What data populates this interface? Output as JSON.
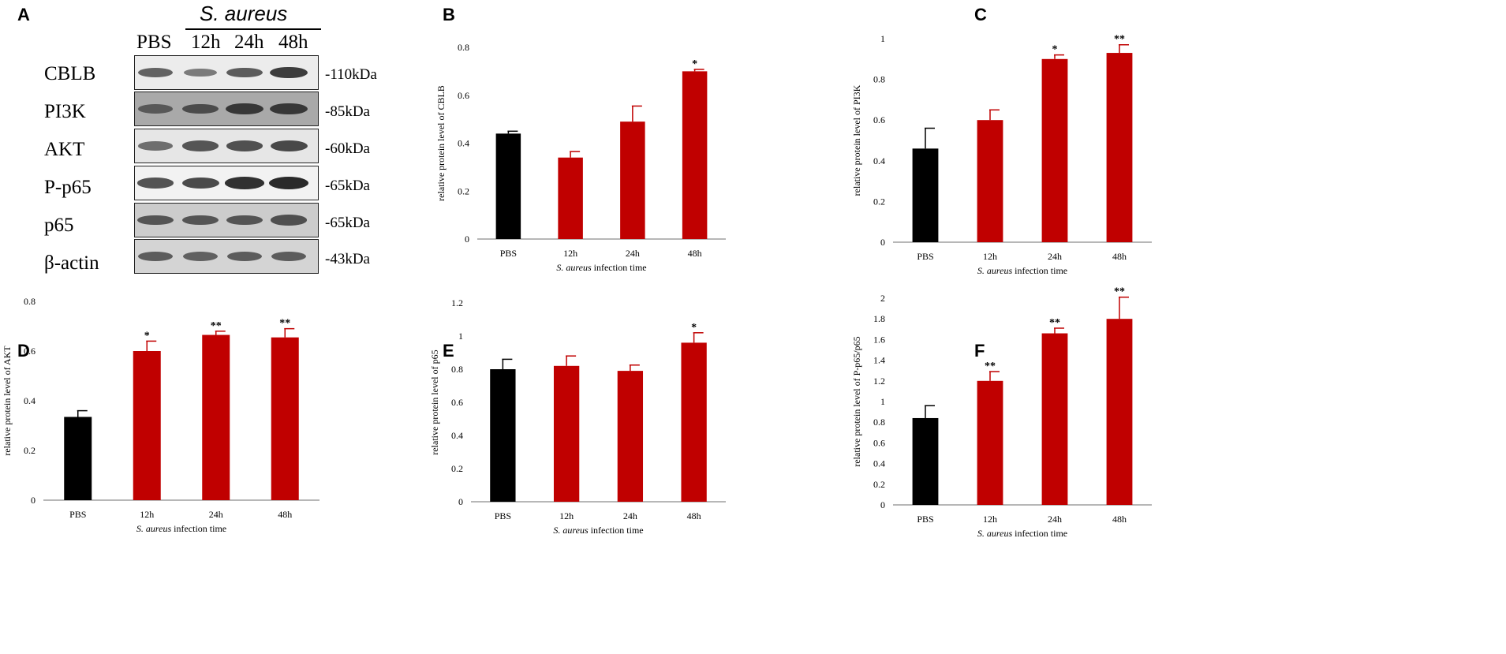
{
  "panel_labels": {
    "a": "A",
    "b": "B",
    "c": "C",
    "d": "D",
    "e": "E",
    "f": "F"
  },
  "blot": {
    "treatment_header": "S. aureus",
    "lanes": [
      "PBS",
      "12h",
      "24h",
      "48h"
    ],
    "rows": [
      {
        "name": "CBLB",
        "size": "-110kDa",
        "intensity": [
          0.55,
          0.35,
          0.6,
          0.85
        ]
      },
      {
        "name": "PI3K",
        "size": "-85kDa",
        "intensity": [
          0.45,
          0.6,
          0.85,
          0.85
        ]
      },
      {
        "name": "AKT",
        "size": "-60kDa",
        "intensity": [
          0.45,
          0.65,
          0.7,
          0.75
        ]
      },
      {
        "name": "P-p65",
        "size": "-65kDa",
        "intensity": [
          0.7,
          0.75,
          0.95,
          1.0
        ]
      },
      {
        "name": "p65",
        "size": "-65kDa",
        "intensity": [
          0.6,
          0.6,
          0.6,
          0.65
        ]
      },
      {
        "name": "β-actin",
        "size": "-43kDa",
        "intensity": [
          0.55,
          0.5,
          0.55,
          0.55
        ]
      }
    ]
  },
  "colors": {
    "control": "#000000",
    "treated": "#c00000",
    "axis": "#8c8c8c"
  },
  "chart_data": [
    {
      "panel": "B",
      "type": "bar",
      "categories": [
        "PBS",
        "12h",
        "24h",
        "48h"
      ],
      "values": [
        0.44,
        0.34,
        0.49,
        0.7
      ],
      "errors": [
        0.01,
        0.025,
        0.065,
        0.008
      ],
      "significance": [
        "",
        "",
        "",
        "*"
      ],
      "ylabel": "relative protein level of CBLB",
      "xlabel_italic": "S. aureus",
      "xlabel_rest": "infection time",
      "ylim": [
        0,
        0.8
      ],
      "yticks": [
        0,
        0.2,
        0.4,
        0.6,
        0.8
      ],
      "yticklabels": [
        "0",
        "0.2",
        "0.4",
        "0.6",
        "0.8"
      ]
    },
    {
      "panel": "C",
      "type": "bar",
      "categories": [
        "PBS",
        "12h",
        "24h",
        "48h"
      ],
      "values": [
        0.46,
        0.6,
        0.9,
        0.93
      ],
      "errors": [
        0.1,
        0.05,
        0.02,
        0.04
      ],
      "significance": [
        "",
        "",
        "*",
        "**"
      ],
      "ylabel": "relative protein level of PI3K",
      "xlabel_italic": "S. aureus",
      "xlabel_rest": "infection time",
      "ylim": [
        0,
        1
      ],
      "yticks": [
        0,
        0.2,
        0.4,
        0.6,
        0.8,
        1
      ],
      "yticklabels": [
        "0",
        "0.2",
        "0.4",
        "0.6",
        "0.8",
        "1"
      ]
    },
    {
      "panel": "D",
      "type": "bar",
      "categories": [
        "PBS",
        "12h",
        "24h",
        "48h"
      ],
      "values": [
        0.335,
        0.6,
        0.665,
        0.655
      ],
      "errors": [
        0.025,
        0.04,
        0.015,
        0.035
      ],
      "significance": [
        "",
        "*",
        "**",
        "**"
      ],
      "ylabel": "relative protein level of AKT",
      "xlabel_italic": "S. aureus",
      "xlabel_rest": "infection time",
      "ylim": [
        0,
        0.8
      ],
      "yticks": [
        0,
        0.2,
        0.4,
        0.6,
        0.8
      ],
      "yticklabels": [
        "0",
        "0.2",
        "0.4",
        "0.6",
        "0.8"
      ]
    },
    {
      "panel": "E",
      "type": "bar",
      "categories": [
        "PBS",
        "12h",
        "24h",
        "48h"
      ],
      "values": [
        0.8,
        0.82,
        0.79,
        0.96
      ],
      "errors": [
        0.06,
        0.06,
        0.035,
        0.06
      ],
      "significance": [
        "",
        "",
        "",
        "*"
      ],
      "ylabel": "relative protein level of p65",
      "xlabel_italic": "S. aureus",
      "xlabel_rest": "infection time",
      "ylim": [
        0,
        1.2
      ],
      "yticks": [
        0,
        0.2,
        0.4,
        0.6,
        0.8,
        1,
        1.2
      ],
      "yticklabels": [
        "0",
        "0.2",
        "0.4",
        "0.6",
        "0.8",
        "1",
        "1.2"
      ]
    },
    {
      "panel": "F",
      "type": "bar",
      "categories": [
        "PBS",
        "12h",
        "24h",
        "48h"
      ],
      "values": [
        0.84,
        1.2,
        1.66,
        1.8
      ],
      "errors": [
        0.12,
        0.09,
        0.05,
        0.21
      ],
      "significance": [
        "",
        "**",
        "**",
        "**"
      ],
      "ylabel": "relative protein level of P-p65/p65",
      "xlabel_italic": "S. aureus",
      "xlabel_rest": "infection time",
      "ylim": [
        0,
        2
      ],
      "yticks": [
        0,
        0.2,
        0.4,
        0.6,
        0.8,
        1,
        1.2,
        1.4,
        1.6,
        1.8,
        2
      ],
      "yticklabels": [
        "0",
        "0.2",
        "0.4",
        "0.6",
        "0.8",
        "1",
        "1.2",
        "1.4",
        "1.6",
        "1.8",
        "2"
      ]
    }
  ]
}
